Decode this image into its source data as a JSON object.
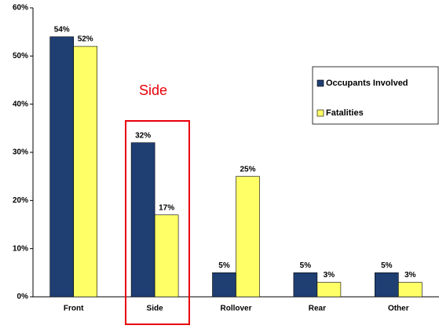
{
  "chart_data": {
    "type": "bar",
    "categories": [
      "Front",
      "Side",
      "Rollover",
      "Rear",
      "Other"
    ],
    "series": [
      {
        "name": "Occupants Involved",
        "color": "#1f3f73",
        "values": [
          54,
          32,
          5,
          5,
          5
        ],
        "value_labels": [
          "54%",
          "32%",
          "5%",
          "5%",
          "5%"
        ]
      },
      {
        "name": "Fatalities",
        "color": "#ffff66",
        "values": [
          52,
          17,
          25,
          3,
          3
        ],
        "value_labels": [
          "52%",
          "17%",
          "25%",
          "3%",
          "3%"
        ]
      }
    ],
    "ylim": [
      0,
      60
    ],
    "yticks": [
      {
        "value": 0,
        "label": "0%"
      },
      {
        "value": 10,
        "label": "10%"
      },
      {
        "value": 20,
        "label": "20%"
      },
      {
        "value": 30,
        "label": "30%"
      },
      {
        "value": 40,
        "label": "40%"
      },
      {
        "value": 50,
        "label": "50%"
      },
      {
        "value": 60,
        "label": "60%"
      }
    ],
    "annotation": "Side",
    "legend": "right"
  }
}
